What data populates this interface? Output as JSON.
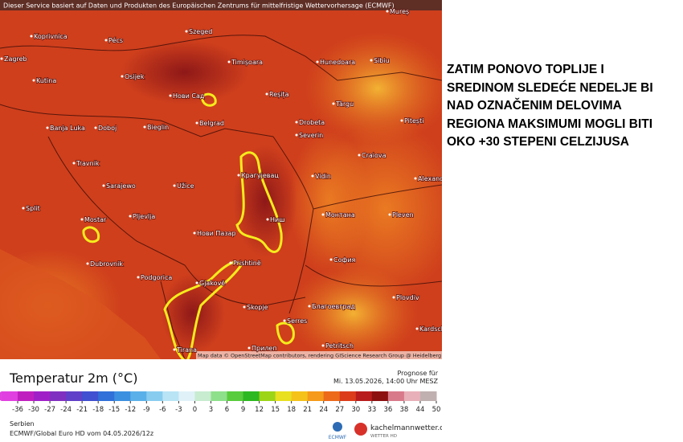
{
  "header": {
    "disclaimer": "Dieser Service basiert auf Daten und Produkten des Europäischen Zentrums für mittelfristige Wettervorhersage (ECMWF)"
  },
  "map": {
    "attribution": "Map data © OpenStreetMap contributors, rendering GIScience Research Group @ Heidelberg University",
    "cities": [
      "Koprivnica",
      "Pécs",
      "Szeged",
      "Zagreb",
      "Osijek",
      "Kutina",
      "Timișoara",
      "Hunedoara",
      "Sibiu",
      "Mureș",
      "Нови Сад",
      "Reșița",
      "Târgu",
      "Pitești",
      "Banja Luka",
      "Doboj",
      "Bieglin",
      "Belgrad",
      "Drobeta",
      "Severin",
      "Craiova",
      "Travnik",
      "Sarajewo",
      "Užice",
      "Крагујевац",
      "Vidin",
      "Alexand",
      "Split",
      "Mostar",
      "Pljevlja",
      "Ниш",
      "Монтана",
      "Pleven",
      "Нови Пазар",
      "Dubrovnik",
      "Prishtinë",
      "София",
      "Podgorica",
      "Gjakovë",
      "Skopje",
      "Благоевград",
      "Plovdiv",
      "Tirana",
      "Прилеп",
      "Petritsch",
      "Kardsch",
      "Serres"
    ]
  },
  "side_text": [
    "ZATIM PONOVO TOPLIJE I",
    "SREDINOM SLEDEĆE NEDELJE BI",
    "NAD OZNAČENIM DELOVIMA",
    "REGIONA MAKSIMUMI MOGLI BITI",
    "OKO +30 STEPENI CELZIJUSA"
  ],
  "legend": {
    "title": "Temperatur 2m (°C)",
    "ticks": [
      -36,
      -30,
      -27,
      -24,
      -21,
      -18,
      -15,
      -12,
      -9,
      -6,
      -3,
      0,
      3,
      6,
      9,
      12,
      15,
      18,
      21,
      24,
      27,
      30,
      33,
      36,
      38,
      44,
      50
    ]
  },
  "forecast": {
    "label": "Prognose für",
    "time": "Mi. 13.05.2026, 14:00 Uhr MESZ"
  },
  "footer": {
    "region": "Serbien",
    "model": "ECMWF/Global Euro HD vom  04.05.2026/12z",
    "ecmwf": "ECMWF",
    "site": "kachelmannwetter.com",
    "site_sub": "WETTER HD"
  }
}
